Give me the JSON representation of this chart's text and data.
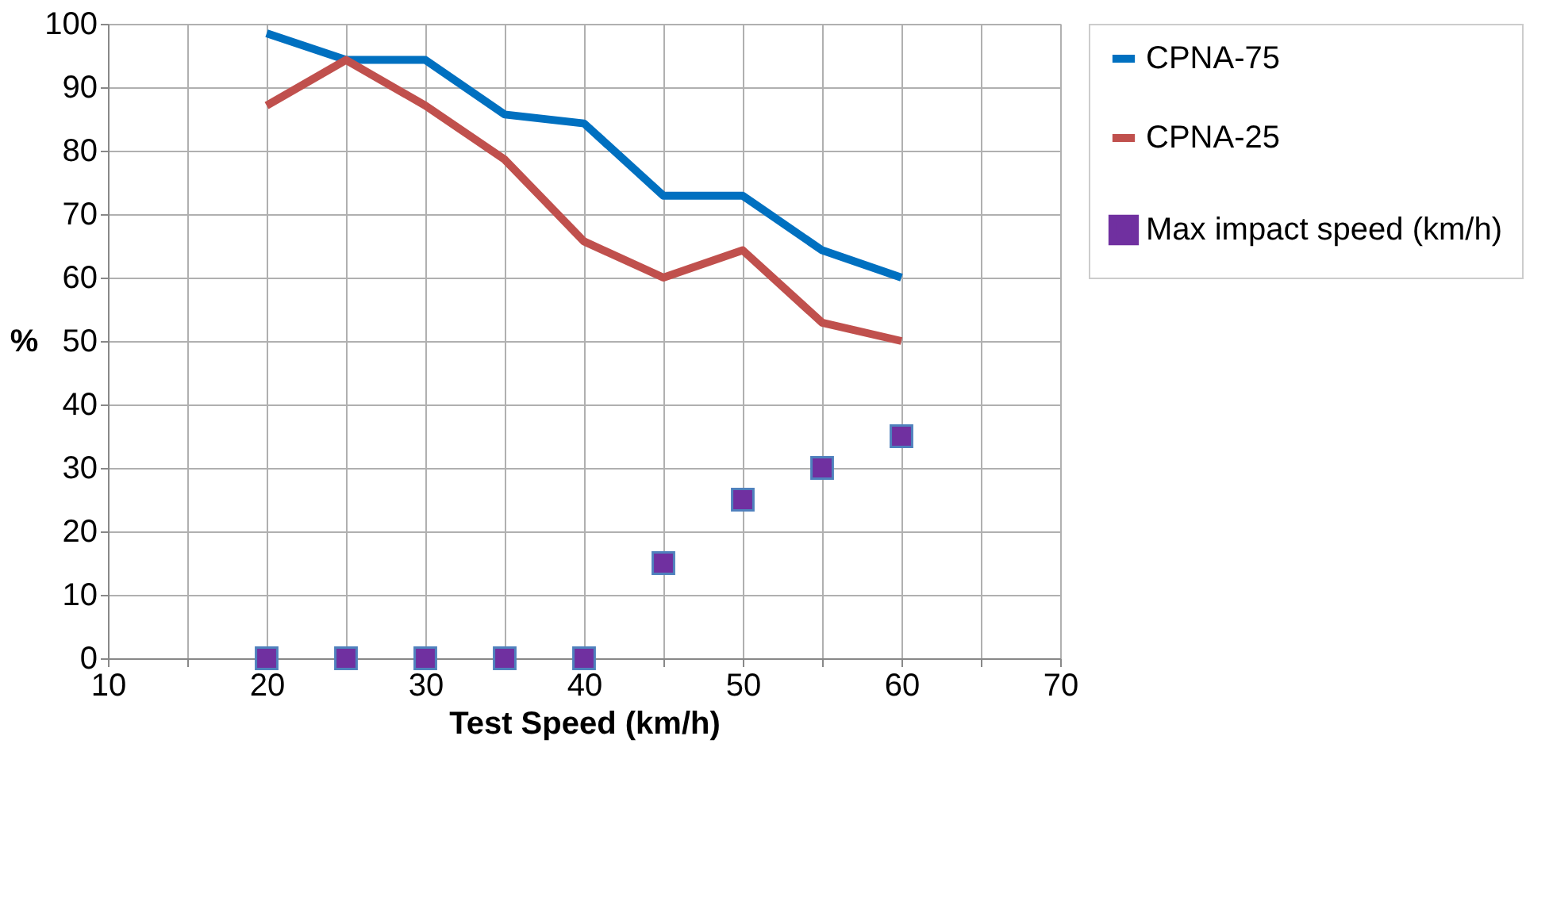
{
  "chart_data": {
    "type": "line",
    "xlabel": "Test Speed (km/h)",
    "ylabel": "%",
    "x": [
      20,
      25,
      30,
      35,
      40,
      45,
      50,
      55,
      60
    ],
    "series": [
      {
        "name": "CPNA-75",
        "color": "#0070c0",
        "marker": "none",
        "values": [
          98.5,
          94.3,
          94.3,
          85.7,
          84.3,
          72.9,
          72.9,
          64.3,
          60
        ]
      },
      {
        "name": "CPNA-25",
        "color": "#c0504d",
        "marker": "none",
        "values": [
          87.1,
          94.3,
          87.1,
          78.6,
          65.7,
          60,
          64.3,
          52.9,
          50
        ]
      },
      {
        "name": "Max impact speed (km/h)",
        "color": "#7030a0",
        "type": "scatter",
        "marker": "square",
        "values": [
          0,
          0,
          0,
          0,
          0,
          15,
          25,
          30,
          35
        ]
      }
    ],
    "xlim": [
      10,
      70
    ],
    "xticks": [
      10,
      {
        "value": 15,
        "label": null
      },
      20,
      {
        "value": 25,
        "label": null
      },
      30,
      {
        "value": 35,
        "label": null
      },
      40,
      {
        "value": 45,
        "label": null
      },
      50,
      {
        "value": 55,
        "label": null
      },
      60,
      {
        "value": 65,
        "label": null
      },
      70
    ],
    "ylim": [
      0,
      100
    ],
    "yticks": [
      0,
      10,
      20,
      30,
      40,
      50,
      60,
      70,
      80,
      90,
      100
    ],
    "grid": true,
    "legend": "right"
  }
}
